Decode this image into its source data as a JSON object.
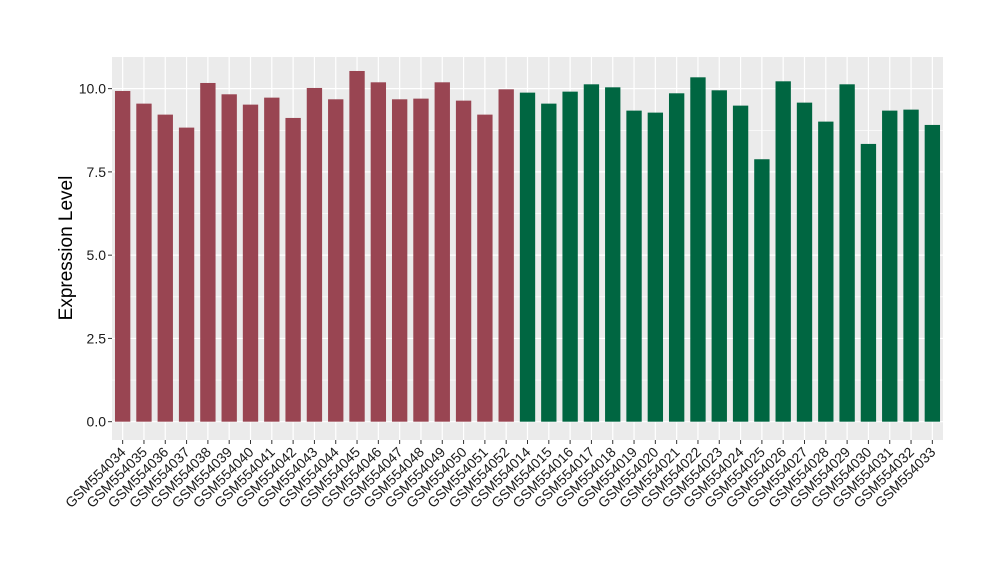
{
  "chart_data": {
    "type": "bar",
    "ylabel": "Expression Level",
    "xlabel": "",
    "ylim": [
      -0.55,
      10.95
    ],
    "yticks": [
      0.0,
      2.5,
      5.0,
      7.5,
      10.0
    ],
    "ytick_labels": [
      "0.0",
      "2.5",
      "5.0",
      "7.5",
      "10.0"
    ],
    "grid": true,
    "background": "#ebebeb",
    "grid_color": "#ffffff",
    "categories": [
      "GSM554034",
      "GSM554035",
      "GSM554036",
      "GSM554037",
      "GSM554038",
      "GSM554039",
      "GSM554040",
      "GSM554041",
      "GSM554042",
      "GSM554043",
      "GSM554044",
      "GSM554045",
      "GSM554046",
      "GSM554047",
      "GSM554048",
      "GSM554049",
      "GSM554050",
      "GSM554051",
      "GSM554052",
      "GSM554014",
      "GSM554015",
      "GSM554016",
      "GSM554017",
      "GSM554018",
      "GSM554019",
      "GSM554020",
      "GSM554021",
      "GSM554022",
      "GSM554023",
      "GSM554024",
      "GSM554025",
      "GSM554026",
      "GSM554027",
      "GSM554028",
      "GSM554029",
      "GSM554030",
      "GSM554031",
      "GSM554032",
      "GSM554033"
    ],
    "values": [
      9.93,
      9.55,
      9.22,
      8.83,
      10.17,
      9.83,
      9.52,
      9.73,
      9.12,
      10.02,
      9.68,
      10.53,
      10.19,
      9.68,
      9.7,
      10.19,
      9.64,
      9.22,
      9.98,
      9.88,
      9.55,
      9.91,
      10.13,
      10.04,
      9.34,
      9.28,
      9.86,
      10.34,
      9.95,
      9.49,
      7.88,
      10.22,
      9.58,
      9.01,
      10.13,
      8.34,
      9.34,
      9.37,
      8.91
    ],
    "groups": [
      {
        "color": "#994552",
        "count": 19
      },
      {
        "color": "#006641",
        "count": 20
      }
    ]
  }
}
